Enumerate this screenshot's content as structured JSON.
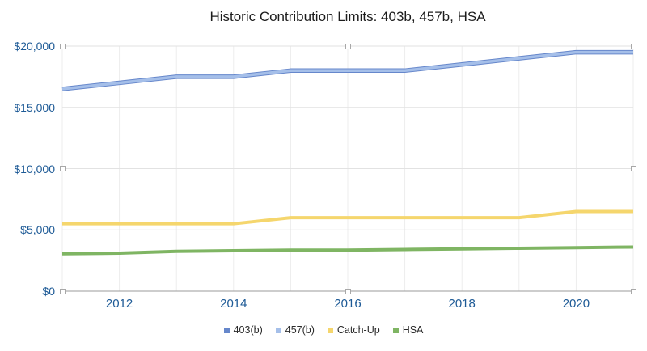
{
  "title": "Historic Contribution Limits: 403b, 457b, HSA",
  "chart_data": {
    "type": "line",
    "x": [
      2011,
      2012,
      2013,
      2014,
      2015,
      2016,
      2017,
      2018,
      2019,
      2020,
      2021
    ],
    "series": [
      {
        "name": "403(b)",
        "color": "#6687cb",
        "values": [
          16500,
          17000,
          17500,
          17500,
          18000,
          18000,
          18000,
          18500,
          19000,
          19500,
          19500
        ]
      },
      {
        "name": "457(b)",
        "color": "#a5bfe9",
        "values": [
          16500,
          17000,
          17500,
          17500,
          18000,
          18000,
          18000,
          18500,
          19000,
          19500,
          19500
        ]
      },
      {
        "name": "Catch-Up",
        "color": "#f5d66d",
        "values": [
          5500,
          5500,
          5500,
          5500,
          6000,
          6000,
          6000,
          6000,
          6000,
          6500,
          6500
        ]
      },
      {
        "name": "HSA",
        "color": "#7fb563",
        "values": [
          3050,
          3100,
          3250,
          3300,
          3350,
          3350,
          3400,
          3450,
          3500,
          3550,
          3600
        ]
      }
    ],
    "xlim": [
      2011,
      2021
    ],
    "ylim": [
      0,
      20000
    ],
    "yticks": [
      0,
      5000,
      10000,
      15000,
      20000
    ],
    "ytick_labels": [
      "$0",
      "$5,000",
      "$10,000",
      "$15,000",
      "$20,000"
    ],
    "xticks": [
      2012,
      2014,
      2016,
      2018,
      2020
    ],
    "xtick_labels": [
      "2012",
      "2014",
      "2016",
      "2018",
      "2020"
    ],
    "grid": true,
    "legend_position": "bottom"
  },
  "colors": {
    "title_text": "#1c1c1c",
    "axis_label_text": "#1d5a96",
    "legend_text": "#2b2b2b",
    "grid_horizontal": "#e2e2e2",
    "grid_vertical": "#ededed",
    "axis_line": "#9b9b9b",
    "handle_border": "#a8a8a8",
    "background": "#ffffff"
  }
}
